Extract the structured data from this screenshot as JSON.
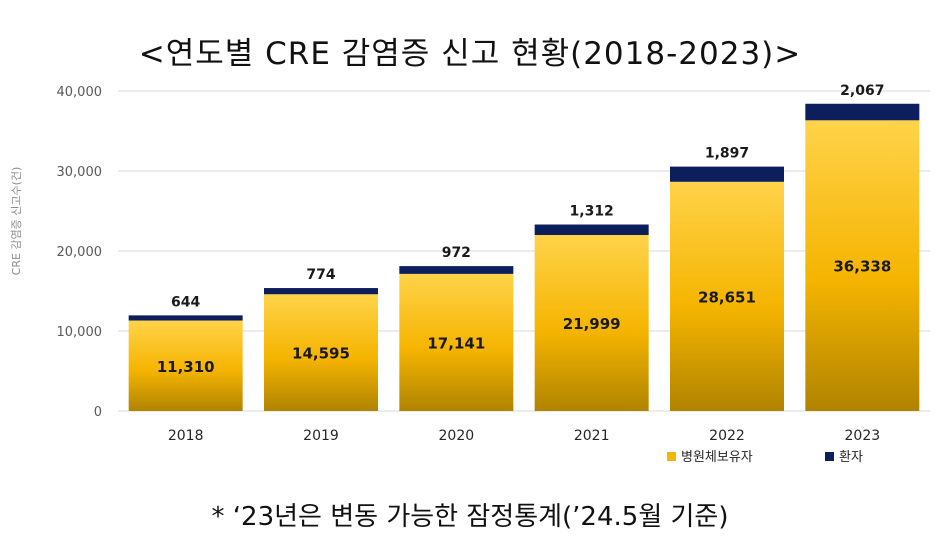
{
  "title": "<연도별 CRE 감염증 신고 현황(2018-2023)>",
  "footnote": "* ‘23년은 변동 가능한 잠정통계(’24.5월 기준)",
  "colors": {
    "carrier_top": "#ffd34a",
    "carrier_mid": "#f5b400",
    "carrier_bottom": "#b08400",
    "patient": "#0c1f5c",
    "gridline": "#d9d9d9",
    "axis_text": "#595959"
  },
  "chart_data": {
    "type": "bar",
    "stacked": true,
    "title": "<연도별 CRE 감염증 신고 현황(2018-2023)>",
    "ylabel": "CRE 감염증 신고수(건)",
    "xlabel": "",
    "ylim": [
      0,
      40000
    ],
    "yticks": [
      0,
      10000,
      20000,
      30000,
      40000
    ],
    "ytick_labels": [
      "0",
      "10,000",
      "20,000",
      "30,000",
      "40,000"
    ],
    "grid": true,
    "legend": "bottom-right",
    "categories": [
      "2018",
      "2019",
      "2020",
      "2021",
      "2022",
      "2023"
    ],
    "series": [
      {
        "name": "병원체보유자",
        "values": [
          11310,
          14595,
          17141,
          21999,
          28651,
          36338
        ],
        "labels": [
          "11,310",
          "14,595",
          "17,141",
          "21,999",
          "28,651",
          "36,338"
        ]
      },
      {
        "name": "환자",
        "values": [
          644,
          774,
          972,
          1312,
          1897,
          2067
        ],
        "labels": [
          "644",
          "774",
          "972",
          "1,312",
          "1,897",
          "2,067"
        ]
      }
    ]
  }
}
